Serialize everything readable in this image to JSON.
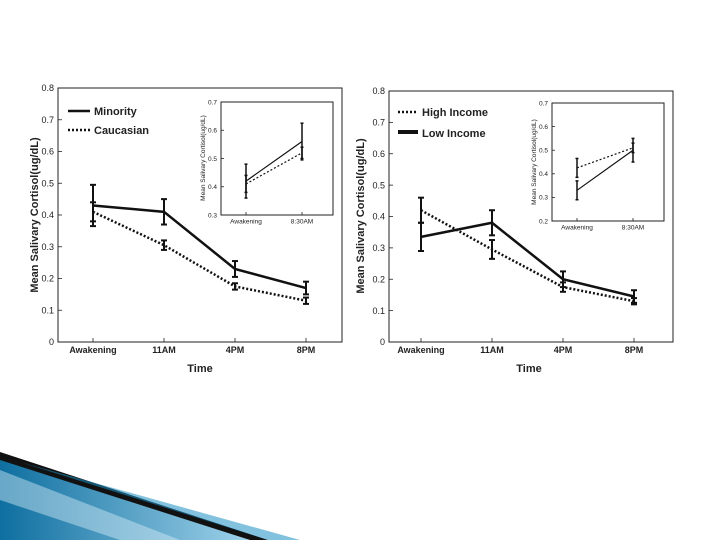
{
  "chart_data": [
    {
      "type": "line",
      "ylabel": "Mean Salivary Cortisol(ug/dL)",
      "xlabel": "Time",
      "categories": [
        "Awakening",
        "11AM",
        "4PM",
        "8PM"
      ],
      "ylim": [
        0,
        0.8
      ],
      "yticks": [
        "0",
        "0.1",
        "0.2",
        "0.3",
        "0.4",
        "0.5",
        "0.6",
        "0.7",
        "0.8"
      ],
      "legend_position": "top-left",
      "series": [
        {
          "name": "Minority",
          "style": "solid",
          "values": [
            0.43,
            0.41,
            0.23,
            0.17
          ],
          "err": [
            0.065,
            0.04,
            0.025,
            0.02
          ]
        },
        {
          "name": "Caucasian",
          "style": "dotted",
          "values": [
            0.41,
            0.305,
            0.175,
            0.13
          ],
          "err": [
            0.03,
            0.015,
            0.01,
            0.01
          ]
        }
      ],
      "inset": {
        "ylabel": "Mean Salivary Cortisol(ug/dL)",
        "categories": [
          "Awakening",
          "8:30AM"
        ],
        "ylim": [
          0.3,
          0.7
        ],
        "yticks": [
          "0.3",
          "0.4",
          "0.5",
          "0.6",
          "0.7"
        ],
        "series": [
          {
            "name": "Minority",
            "style": "solid",
            "values": [
              0.42,
              0.56
            ],
            "err": [
              0.06,
              0.065
            ]
          },
          {
            "name": "Caucasian",
            "style": "dotted",
            "values": [
              0.41,
              0.52
            ],
            "err": [
              0.03,
              0.02
            ]
          }
        ]
      }
    },
    {
      "type": "line",
      "ylabel": "Mean Salivary Cortisol(ug/dL)",
      "xlabel": "Time",
      "categories": [
        "Awakening",
        "11AM",
        "4PM",
        "8PM"
      ],
      "ylim": [
        0,
        0.8
      ],
      "yticks": [
        "0",
        "0.1",
        "0.2",
        "0.3",
        "0.4",
        "0.5",
        "0.6",
        "0.7",
        "0.8"
      ],
      "legend_position": "top-left",
      "series": [
        {
          "name": "High Income",
          "style": "dotted",
          "values": [
            0.42,
            0.295,
            0.175,
            0.13
          ],
          "err": [
            0.04,
            0.03,
            0.015,
            0.01
          ]
        },
        {
          "name": "Low Income",
          "style": "solid",
          "values": [
            0.335,
            0.38,
            0.2,
            0.145
          ],
          "err": [
            0.045,
            0.04,
            0.025,
            0.02
          ]
        }
      ],
      "inset": {
        "ylabel": "Mean Salivary Cortisol(ug/dL)",
        "categories": [
          "Awakening",
          "8:30AM"
        ],
        "ylim": [
          0.2,
          0.7
        ],
        "yticks": [
          "0.2",
          "0.3",
          "0.4",
          "0.5",
          "0.6",
          "0.7"
        ],
        "series": [
          {
            "name": "High Income",
            "style": "dotted",
            "values": [
              0.425,
              0.51
            ],
            "err": [
              0.04,
              0.02
            ]
          },
          {
            "name": "Low Income",
            "style": "solid",
            "values": [
              0.33,
              0.5
            ],
            "err": [
              0.04,
              0.05
            ]
          }
        ]
      }
    }
  ]
}
